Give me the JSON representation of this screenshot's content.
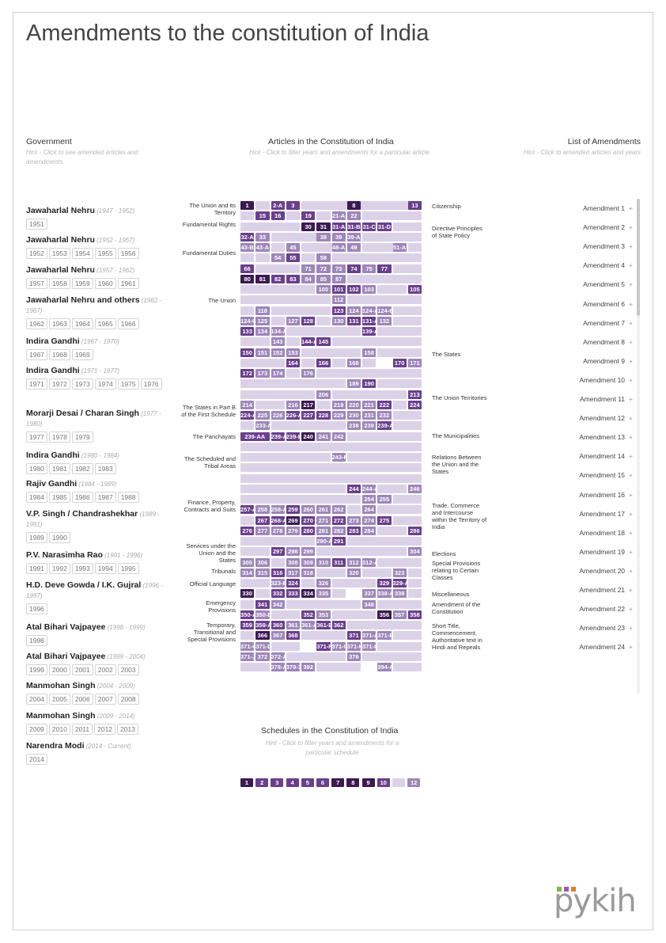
{
  "title": "Amendments to the constitution of India",
  "government": {
    "header": "Government",
    "hint": "Hint - Click to see amended articles and amendments",
    "items": [
      {
        "name": "Jawaharlal Nehru",
        "period": "(1947 - 1952)",
        "years": [
          "1951"
        ]
      },
      {
        "name": "Jawaharlal Nehru",
        "period": "(1952 - 1957)",
        "years": [
          "1952",
          "1953",
          "1954",
          "1955",
          "1956"
        ]
      },
      {
        "name": "Jawaharlal Nehru",
        "period": "(1957 - 1962)",
        "years": [
          "1957",
          "1958",
          "1959",
          "1960",
          "1961"
        ]
      },
      {
        "name": "Jawaharlal Nehru and others",
        "period": "(1962 - 1967)",
        "years": [
          "1962",
          "1963",
          "1964",
          "1965",
          "1966"
        ]
      },
      {
        "name": "Indira Gandhi",
        "period": "(1967 - 1970)",
        "years": [
          "1967",
          "1968",
          "1969"
        ]
      },
      {
        "name": "Indira Gandhi",
        "period": "(1971 - 1977)",
        "years": [
          "1971",
          "1972",
          "1973",
          "1974",
          "1975",
          "1976"
        ]
      },
      {
        "name": "Morarji Desai / Charan Singh",
        "period": "(1977 - 1980)",
        "years": [
          "1977",
          "1978",
          "1979"
        ]
      },
      {
        "name": "Indira Gandhi",
        "period": "(1980 - 1984)",
        "years": [
          "1980",
          "1981",
          "1982",
          "1983"
        ]
      },
      {
        "name": "Rajiv Gandhi",
        "period": "(1984 - 1989)",
        "years": [
          "1984",
          "1985",
          "1986",
          "1987",
          "1988"
        ]
      },
      {
        "name": "V.P. Singh / Chandrashekhar",
        "period": "(1989 - 1991)",
        "years": [
          "1989",
          "1990"
        ]
      },
      {
        "name": "P.V. Narasimha Rao",
        "period": "(1991 - 1996)",
        "years": [
          "1991",
          "1992",
          "1993",
          "1994",
          "1995"
        ]
      },
      {
        "name": "H.D. Deve Gowda / I.K. Gujral",
        "period": "(1996 - 1997)",
        "years": [
          "1996"
        ]
      },
      {
        "name": "Atal Bihari Vajpayee",
        "period": "(1998 - 1999)",
        "years": [
          "1998"
        ]
      },
      {
        "name": "Atal Bihari Vajpayee",
        "period": "(1999 - 2004)",
        "years": [
          "1999",
          "2000",
          "2001",
          "2002",
          "2003"
        ]
      },
      {
        "name": "Manmohan Singh",
        "period": "(2004 - 2009)",
        "years": [
          "2004",
          "2005",
          "2006",
          "2007",
          "2008"
        ]
      },
      {
        "name": "Manmohan Singh",
        "period": "(2009 - 2014)",
        "years": [
          "2009",
          "2010",
          "2011",
          "2012",
          "2013"
        ]
      },
      {
        "name": "Narendra Modi",
        "period": "(2014 - Current)",
        "years": [
          "2014"
        ]
      }
    ]
  },
  "articles": {
    "header": "Articles in the Constitution of India",
    "hint": "Hint - Click to filter years and amendments for a particular article",
    "left_labels": [
      "The Union and its Territory",
      "Fundamental Rights",
      "Fundamental Duties",
      "The Union",
      "The States in Part B of the First Schedule",
      "The Panchayats",
      "The Scheduled and Tribal Areas",
      "Finance, Property, Contracts and Suits",
      "Services under the Union and the States",
      "Tribunals",
      "Official Language",
      "Emergency Provisions",
      "Temporary, Transitional and Special Provisions"
    ],
    "right_labels": [
      "Citizenship",
      "Directive Principles of State Policy",
      "The States",
      "The Union Territories",
      "The Municipalities",
      "Relations Between the Union and the States",
      "Trade, Commerce and Intercourse within the Territory of India",
      "Elections",
      "Special Provisions relating to Certain Classes",
      "Miscellaneous",
      "Amendment of the Constitution",
      "Short Title, Commencement, Authoritative text in Hindi and Repeals"
    ],
    "colors": {
      "dark": "#3b1a52",
      "mid": "#6a3f8d",
      "light": "#9e86b9",
      "pale": "#dcd2e8"
    }
  },
  "amendments": {
    "header": "List of Amendments",
    "hint": "Hint - Click to amended articles and years",
    "items": [
      "Amendment 1",
      "Amendment 2",
      "Amendment 3",
      "Amendment 4",
      "Amendment 5",
      "Amendment 6",
      "Amendment 7",
      "Amendment 8",
      "Amendment 9",
      "Amendment 10",
      "Amendment 11",
      "Amendment 12",
      "Amendment 13",
      "Amendment 14",
      "Amendment 15",
      "Amendment 16",
      "Amendment 17",
      "Amendment 18",
      "Amendment 19",
      "Amendment 20",
      "Amendment 21",
      "Amendment 22",
      "Amendment 23",
      "Amendment 24"
    ],
    "plus": "+"
  },
  "schedules": {
    "header": "Schedules in the Constitution of India",
    "hint": "Hint - Click to filter years and amendments for a particular schedule",
    "items": [
      "1",
      "2",
      "3",
      "4",
      "5",
      "6",
      "7",
      "8",
      "9",
      "10",
      "",
      "12"
    ]
  },
  "logo": {
    "text": "pykih",
    "dot_colors": [
      "#7dbb42",
      "#9b59b6",
      "#e67e22"
    ]
  }
}
